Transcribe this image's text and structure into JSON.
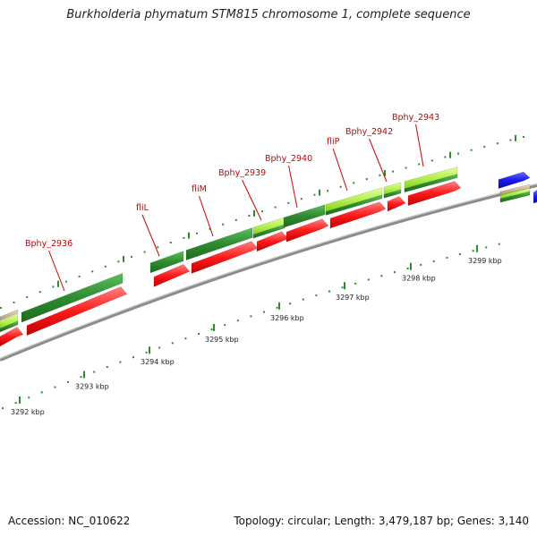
{
  "title": "Burkholderia phymatum STM815 chromosome 1, complete sequence",
  "footer": {
    "accession": "Accession: NC_010622",
    "summary": "Topology: circular; Length: 3,479,187 bp; Genes: 3,140"
  },
  "colors": {
    "backbone": "#8c8c8c",
    "cds_forward": "#ff1a1a",
    "gene_dark": "#2e8b2e",
    "gene_light": "#aef04a",
    "ruler_tick": "#2e8b2e",
    "label_red": "#cc0000",
    "blue_feature": "#1a1aee",
    "tan_feature": "#c8b48a"
  },
  "chart_data": {
    "type": "genome-map",
    "ruler_labels": [
      "3292 kbp",
      "3293 kbp",
      "3294 kbp",
      "3295 kbp",
      "3296 kbp",
      "3297 kbp",
      "3298 kbp",
      "3299 kbp"
    ],
    "gene_labels": [
      "Bphy_2936",
      "fliL",
      "fliM",
      "Bphy_2939",
      "Bphy_2940",
      "fliP",
      "Bphy_2942",
      "Bphy_2943"
    ]
  }
}
